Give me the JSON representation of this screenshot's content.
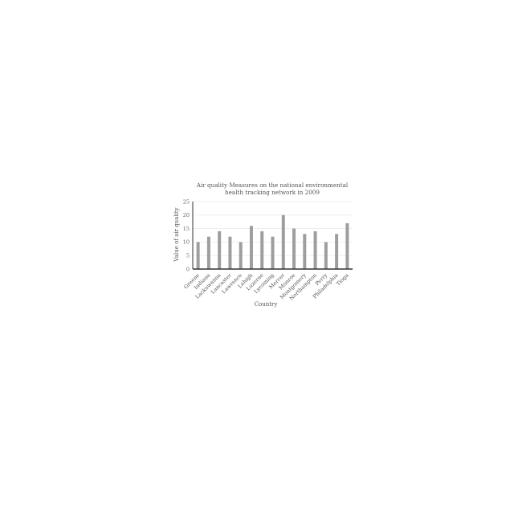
{
  "chart_data": {
    "type": "bar",
    "title_lines": [
      "Air quality Measures on the national environmental",
      "health tracking network in 2009"
    ],
    "xlabel": "Country",
    "ylabel": "Value of  air quality",
    "categories": [
      "Greene",
      "Indiana",
      "Lackawanna",
      "Lancaster",
      "Lawrence",
      "Lehigh",
      "Luzerne",
      "Lycoming",
      "Mercer",
      "Monroe",
      "Montgomery",
      "Northampton",
      "Perry",
      "Philadelphia",
      "Tioga"
    ],
    "values": [
      10,
      12,
      14,
      12,
      10,
      16,
      14,
      12,
      20,
      15,
      13,
      14,
      10,
      13,
      17
    ],
    "ylim": [
      0,
      25
    ],
    "yticks": [
      "0",
      "5",
      "10",
      "15",
      "20",
      "25"
    ],
    "grid": true,
    "legend": "none",
    "colors": {
      "bar": "#9e9e9e",
      "axis": "#333333",
      "grid": "#e3e3e3"
    }
  }
}
